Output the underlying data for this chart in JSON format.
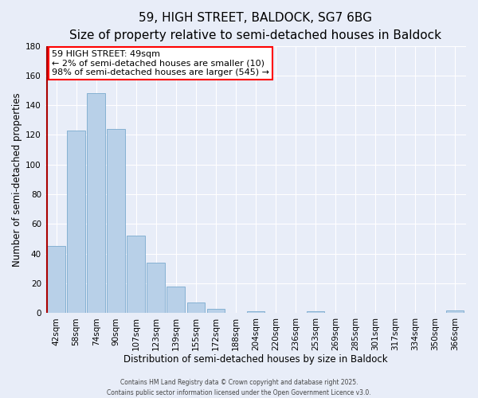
{
  "title": "59, HIGH STREET, BALDOCK, SG7 6BG",
  "subtitle": "Size of property relative to semi-detached houses in Baldock",
  "xlabel": "Distribution of semi-detached houses by size in Baldock",
  "ylabel": "Number of semi-detached properties",
  "categories": [
    "42sqm",
    "58sqm",
    "74sqm",
    "90sqm",
    "107sqm",
    "123sqm",
    "139sqm",
    "155sqm",
    "172sqm",
    "188sqm",
    "204sqm",
    "220sqm",
    "236sqm",
    "253sqm",
    "269sqm",
    "285sqm",
    "301sqm",
    "317sqm",
    "334sqm",
    "350sqm",
    "366sqm"
  ],
  "values": [
    45,
    123,
    148,
    124,
    52,
    34,
    18,
    7,
    3,
    0,
    1,
    0,
    0,
    1,
    0,
    0,
    0,
    0,
    0,
    0,
    2
  ],
  "bar_color": "#b8d0e8",
  "bar_edge_color": "#7aaace",
  "highlight_color": "#aa0000",
  "annotation_title": "59 HIGH STREET: 49sqm",
  "annotation_line1": "← 2% of semi-detached houses are smaller (10)",
  "annotation_line2": "98% of semi-detached houses are larger (545) →",
  "ylim": [
    0,
    180
  ],
  "yticks": [
    0,
    20,
    40,
    60,
    80,
    100,
    120,
    140,
    160,
    180
  ],
  "footer1": "Contains HM Land Registry data © Crown copyright and database right 2025.",
  "footer2": "Contains public sector information licensed under the Open Government Licence v3.0.",
  "bg_color": "#e8edf8",
  "grid_color": "#ffffff",
  "title_fontsize": 11,
  "subtitle_fontsize": 9,
  "axis_label_fontsize": 8.5,
  "tick_fontsize": 7.5,
  "annotation_fontsize": 8,
  "footer_fontsize": 5.5
}
